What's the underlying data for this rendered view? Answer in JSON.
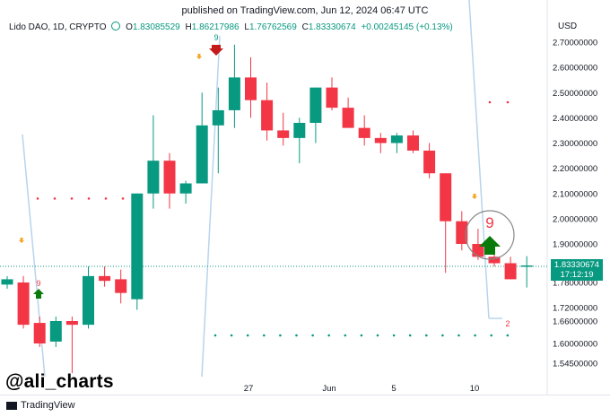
{
  "header": {
    "published": "published on TradingView.com, Jun 12, 2024 06:47 UTC"
  },
  "legend": {
    "symbol": "Lido DAO, 1D, CRYPTO",
    "open_label": "O",
    "open": "1.83085529",
    "high_label": "H",
    "high": "1.86217986",
    "low_label": "L",
    "low": "1.76762569",
    "close_label": "C",
    "close": "1.83330674",
    "change": "+0.00245145 (+0.13%)"
  },
  "axis": {
    "currency": "USD",
    "price_ticks": [
      "2.70000000",
      "2.60000000",
      "2.50000000",
      "2.40000000",
      "2.30000000",
      "2.20000000",
      "2.10000000",
      "2.00000000",
      "1.90000000",
      "1.78000000",
      "1.72000000",
      "1.66000000",
      "1.60000000",
      "1.54500000"
    ],
    "date_ticks": [
      "27",
      "Jun",
      "5",
      "10"
    ]
  },
  "price_label": {
    "price": "1.83330674",
    "countdown": "17:12:19"
  },
  "colors": {
    "up": "#089981",
    "down": "#f23645",
    "guide": "#b8d4ee",
    "arrow_up": "#0a7a0a",
    "arrow_down": "#c41a1a"
  },
  "annotations": {
    "td_count_top": "9",
    "td_count_left": "9",
    "td_count_circle": "9",
    "td_count_bottom": "2"
  },
  "watermark": {
    "handle": "@ali_charts"
  },
  "footer": {
    "brand": "TradingView"
  },
  "chart_data": {
    "type": "candlestick",
    "symbol": "Lido DAO, 1D, CRYPTO",
    "y_scale_note": "non-linear axis as labeled",
    "candles": [
      {
        "o": 1.775,
        "h": 1.8,
        "l": 1.765,
        "c": 1.79
      },
      {
        "o": 1.78,
        "h": 1.8,
        "l": 1.64,
        "c": 1.65
      },
      {
        "o": 1.655,
        "h": 1.68,
        "l": 1.59,
        "c": 1.6
      },
      {
        "o": 1.605,
        "h": 1.68,
        "l": 1.59,
        "c": 1.66
      },
      {
        "o": 1.66,
        "h": 1.68,
        "l": 1.52,
        "c": 1.65
      },
      {
        "o": 1.65,
        "h": 1.83,
        "l": 1.64,
        "c": 1.8
      },
      {
        "o": 1.8,
        "h": 1.83,
        "l": 1.77,
        "c": 1.785
      },
      {
        "o": 1.79,
        "h": 1.82,
        "l": 1.73,
        "c": 1.755
      },
      {
        "o": 1.74,
        "h": 2.1,
        "l": 1.71,
        "c": 2.1
      },
      {
        "o": 2.1,
        "h": 2.41,
        "l": 2.04,
        "c": 2.23
      },
      {
        "o": 2.23,
        "h": 2.26,
        "l": 2.04,
        "c": 2.1
      },
      {
        "o": 2.1,
        "h": 2.15,
        "l": 2.06,
        "c": 2.14
      },
      {
        "o": 2.14,
        "h": 2.5,
        "l": 2.14,
        "c": 2.37
      },
      {
        "o": 2.37,
        "h": 2.52,
        "l": 2.18,
        "c": 2.43
      },
      {
        "o": 2.43,
        "h": 2.69,
        "l": 2.36,
        "c": 2.56
      },
      {
        "o": 2.56,
        "h": 2.64,
        "l": 2.4,
        "c": 2.47
      },
      {
        "o": 2.47,
        "h": 2.54,
        "l": 2.31,
        "c": 2.35
      },
      {
        "o": 2.35,
        "h": 2.42,
        "l": 2.29,
        "c": 2.32
      },
      {
        "o": 2.32,
        "h": 2.4,
        "l": 2.22,
        "c": 2.38
      },
      {
        "o": 2.38,
        "h": 2.52,
        "l": 2.3,
        "c": 2.52
      },
      {
        "o": 2.52,
        "h": 2.56,
        "l": 2.43,
        "c": 2.44
      },
      {
        "o": 2.44,
        "h": 2.48,
        "l": 2.36,
        "c": 2.36
      },
      {
        "o": 2.36,
        "h": 2.41,
        "l": 2.29,
        "c": 2.32
      },
      {
        "o": 2.32,
        "h": 2.34,
        "l": 2.26,
        "c": 2.3
      },
      {
        "o": 2.3,
        "h": 2.34,
        "l": 2.26,
        "c": 2.33
      },
      {
        "o": 2.33,
        "h": 2.35,
        "l": 2.26,
        "c": 2.27
      },
      {
        "o": 2.27,
        "h": 2.3,
        "l": 2.16,
        "c": 2.18
      },
      {
        "o": 2.18,
        "h": 2.18,
        "l": 1.81,
        "c": 1.99
      },
      {
        "o": 1.99,
        "h": 2.03,
        "l": 1.88,
        "c": 1.9
      },
      {
        "o": 1.9,
        "h": 1.96,
        "l": 1.85,
        "c": 1.86
      },
      {
        "o": 1.86,
        "h": 1.88,
        "l": 1.83,
        "c": 1.84
      },
      {
        "o": 1.84,
        "h": 1.86,
        "l": 1.79,
        "c": 1.79
      },
      {
        "o": 1.831,
        "h": 1.862,
        "l": 1.768,
        "c": 1.833
      }
    ],
    "resistance_level": 2.08,
    "support_level": 1.625
  }
}
